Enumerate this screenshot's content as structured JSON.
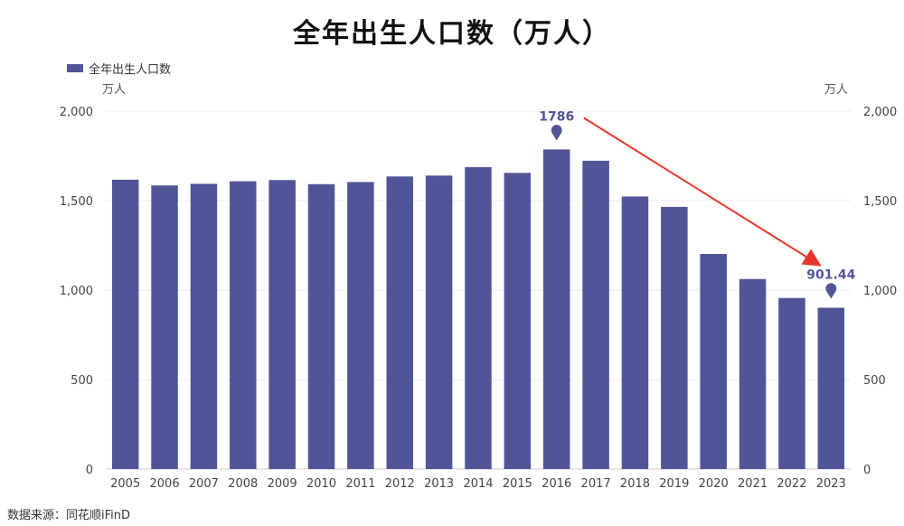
{
  "chart_data": {
    "type": "bar",
    "title": "全年出生人口数（万人）",
    "legend_position": "top-left",
    "series": [
      {
        "name": "全年出生人口数",
        "color": "#4f5597",
        "values": [
          1617,
          1585,
          1594,
          1608,
          1615,
          1592,
          1604,
          1635,
          1640,
          1687,
          1655,
          1786,
          1723,
          1523,
          1465,
          1202,
          1062,
          956,
          901.44
        ]
      }
    ],
    "categories": [
      "2005",
      "2006",
      "2007",
      "2008",
      "2009",
      "2010",
      "2011",
      "2012",
      "2013",
      "2014",
      "2015",
      "2016",
      "2017",
      "2018",
      "2019",
      "2020",
      "2021",
      "2022",
      "2023"
    ],
    "y_left": {
      "label": "万人",
      "ylim": [
        0,
        2000
      ],
      "ticks": [
        "0",
        "500",
        "1,000",
        "1,500",
        "2,000"
      ]
    },
    "y_right": {
      "label": "万人",
      "ylim": [
        0,
        2000
      ],
      "ticks": [
        "0",
        "500",
        "1,000",
        "1,500",
        "2,000"
      ]
    },
    "grid": "horizontal",
    "annotations": [
      {
        "category": "2016",
        "text": "1786",
        "marker": "pin"
      },
      {
        "category": "2023",
        "text": "901.44",
        "marker": "pin"
      }
    ],
    "trend_arrow": {
      "from": "2016",
      "to": "2023",
      "color": "#e8352b"
    }
  },
  "source": "数据来源：同花顺iFinD"
}
